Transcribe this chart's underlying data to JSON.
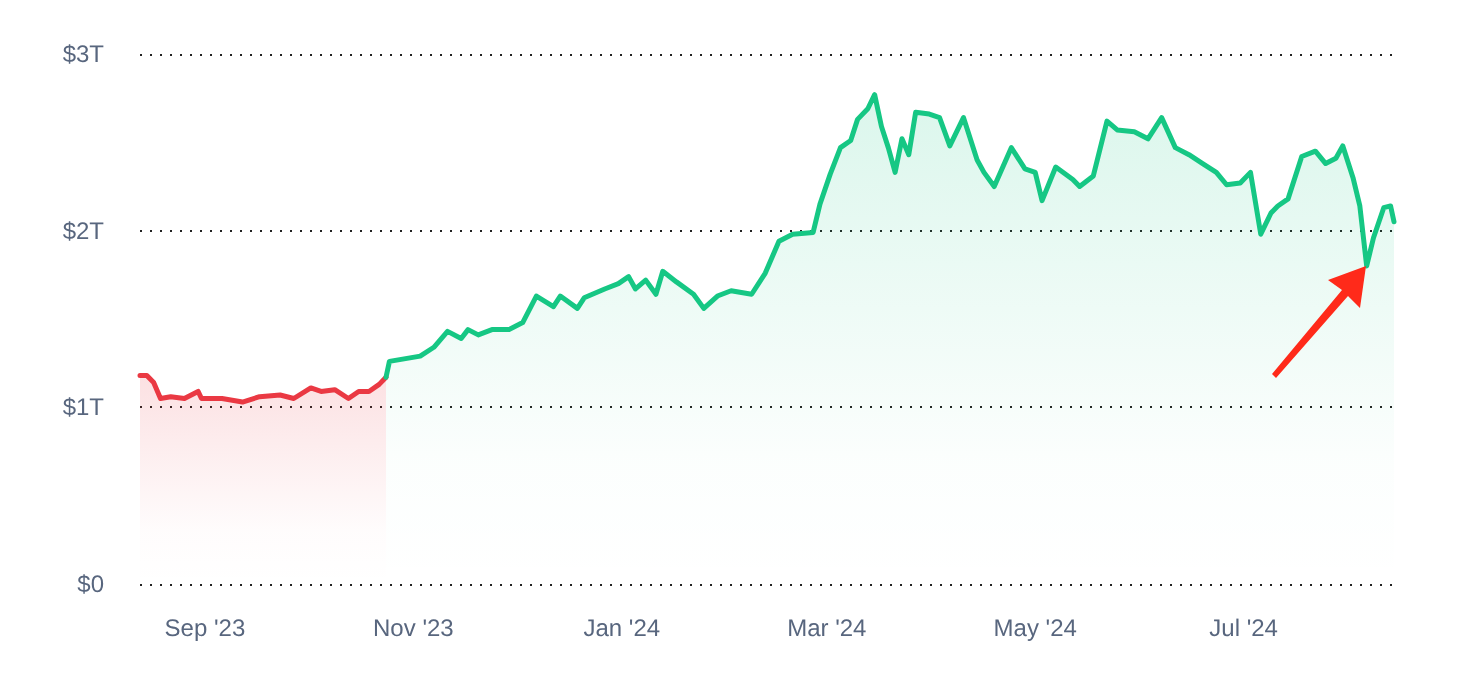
{
  "chart_data": {
    "type": "area",
    "grid": "y",
    "marker": "none",
    "line_style": "solid",
    "xlim": [
      "2023-08-13",
      "2024-08-14"
    ],
    "xticks": [
      {
        "value": "2023-09-01",
        "label": "Sep '23"
      },
      {
        "value": "2023-11-01",
        "label": "Nov '23"
      },
      {
        "value": "2024-01-01",
        "label": "Jan '24"
      },
      {
        "value": "2024-03-01",
        "label": "Mar '24"
      },
      {
        "value": "2024-05-01",
        "label": "May '24"
      },
      {
        "value": "2024-07-01",
        "label": "Jul '24"
      }
    ],
    "ylim": [
      0,
      3
    ],
    "yticks": [
      {
        "value": 0,
        "label": "$0"
      },
      {
        "value": 1,
        "label": "$1T"
      },
      {
        "value": 2,
        "label": "$2T"
      },
      {
        "value": 3,
        "label": "$3T"
      }
    ],
    "series": [
      {
        "color": "#ea3943",
        "x": [
          "2023-08-13",
          "2023-08-15",
          "2023-08-17",
          "2023-08-19",
          "2023-08-22",
          "2023-08-26",
          "2023-08-30",
          "2023-08-31",
          "2023-09-06",
          "2023-09-12",
          "2023-09-17",
          "2023-09-23",
          "2023-09-27",
          "2023-10-02",
          "2023-10-05",
          "2023-10-09",
          "2023-10-13",
          "2023-10-16",
          "2023-10-19",
          "2023-10-22",
          "2023-10-24"
        ],
        "values": [
          1.18,
          1.18,
          1.14,
          1.05,
          1.06,
          1.05,
          1.09,
          1.05,
          1.05,
          1.03,
          1.06,
          1.07,
          1.05,
          1.11,
          1.09,
          1.1,
          1.05,
          1.09,
          1.09,
          1.13,
          1.17
        ]
      },
      {
        "color": "#16c784",
        "x": [
          "2023-10-24",
          "2023-10-25",
          "2023-10-28",
          "2023-11-03",
          "2023-11-07",
          "2023-11-11",
          "2023-11-15",
          "2023-11-17",
          "2023-11-20",
          "2023-11-24",
          "2023-11-29",
          "2023-12-03",
          "2023-12-07",
          "2023-12-12",
          "2023-12-14",
          "2023-12-19",
          "2023-12-21",
          "2023-12-27",
          "2023-12-31",
          "2024-01-03",
          "2024-01-05",
          "2024-01-08",
          "2024-01-11",
          "2024-01-13",
          "2024-01-17",
          "2024-01-22",
          "2024-01-25",
          "2024-01-29",
          "2024-02-02",
          "2024-02-08",
          "2024-02-12",
          "2024-02-16",
          "2024-02-20",
          "2024-02-26",
          "2024-02-28",
          "2024-03-02",
          "2024-03-05",
          "2024-03-08",
          "2024-03-10",
          "2024-03-13",
          "2024-03-15",
          "2024-03-17",
          "2024-03-19",
          "2024-03-21",
          "2024-03-23",
          "2024-03-25",
          "2024-03-27",
          "2024-03-31",
          "2024-04-03",
          "2024-04-06",
          "2024-04-10",
          "2024-04-14",
          "2024-04-16",
          "2024-04-19",
          "2024-04-24",
          "2024-04-28",
          "2024-05-01",
          "2024-05-03",
          "2024-05-07",
          "2024-05-12",
          "2024-05-14",
          "2024-05-18",
          "2024-05-22",
          "2024-05-25",
          "2024-05-30",
          "2024-06-03",
          "2024-06-07",
          "2024-06-11",
          "2024-06-15",
          "2024-06-19",
          "2024-06-23",
          "2024-06-26",
          "2024-06-30",
          "2024-07-03",
          "2024-07-06",
          "2024-07-09",
          "2024-07-11",
          "2024-07-14",
          "2024-07-18",
          "2024-07-22",
          "2024-07-25",
          "2024-07-28",
          "2024-07-30",
          "2024-08-02",
          "2024-08-04",
          "2024-08-06",
          "2024-08-08",
          "2024-08-11",
          "2024-08-13",
          "2024-08-14"
        ],
        "values": [
          1.17,
          1.26,
          1.27,
          1.29,
          1.34,
          1.43,
          1.39,
          1.44,
          1.41,
          1.44,
          1.44,
          1.48,
          1.63,
          1.57,
          1.63,
          1.56,
          1.62,
          1.67,
          1.7,
          1.74,
          1.67,
          1.72,
          1.64,
          1.77,
          1.71,
          1.64,
          1.56,
          1.63,
          1.66,
          1.64,
          1.76,
          1.94,
          1.98,
          1.99,
          2.15,
          2.32,
          2.47,
          2.51,
          2.63,
          2.69,
          2.77,
          2.59,
          2.47,
          2.33,
          2.52,
          2.43,
          2.67,
          2.66,
          2.64,
          2.48,
          2.64,
          2.4,
          2.33,
          2.25,
          2.47,
          2.35,
          2.33,
          2.17,
          2.36,
          2.29,
          2.25,
          2.31,
          2.62,
          2.57,
          2.56,
          2.52,
          2.64,
          2.47,
          2.43,
          2.38,
          2.33,
          2.26,
          2.27,
          2.33,
          1.98,
          2.1,
          2.14,
          2.18,
          2.42,
          2.45,
          2.38,
          2.41,
          2.48,
          2.3,
          2.14,
          1.8,
          1.96,
          2.13,
          2.14,
          2.05
        ]
      }
    ]
  }
}
